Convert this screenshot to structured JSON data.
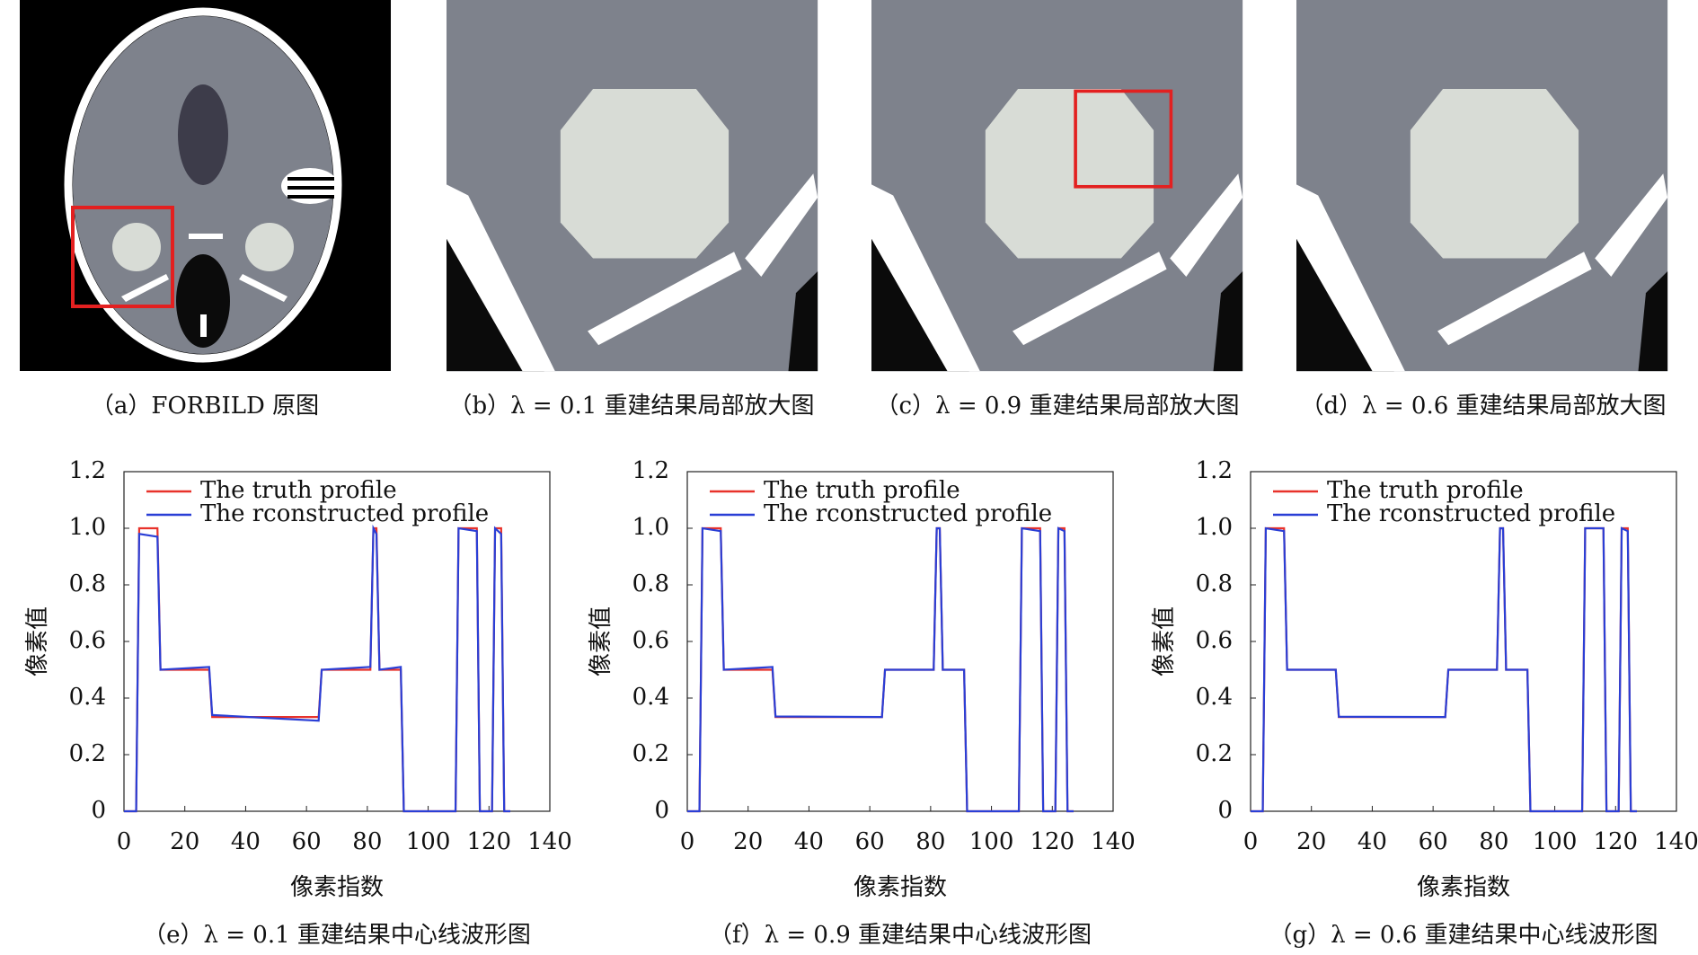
{
  "images": [
    {
      "caption": "（a）FORBILD 原图"
    },
    {
      "caption": "（b）λ = 0.1 重建结果局部放大图"
    },
    {
      "caption": "（c）λ = 0.9 重建结果局部放大图"
    },
    {
      "caption": "（d）λ = 0.6 重建结果局部放大图"
    }
  ],
  "chart_data": [
    {
      "type": "line",
      "caption": "（e）λ = 0.1 重建结果中心线波形图",
      "x_label": "像素指数",
      "y_label": "像素值",
      "x": [
        0,
        4,
        5,
        11,
        12,
        28,
        29,
        64,
        65,
        81,
        82,
        83,
        84,
        91,
        92,
        109,
        110,
        116,
        117,
        121,
        122,
        124,
        125,
        127
      ],
      "series": [
        {
          "name": "The truth profile",
          "color": "#e8322b",
          "values": [
            0,
            0,
            1,
            1,
            0.5,
            0.5,
            0.333,
            0.333,
            0.5,
            0.5,
            1,
            1,
            0.5,
            0.5,
            0,
            0,
            1,
            1,
            0,
            0,
            1,
            1,
            0,
            0
          ]
        },
        {
          "name": "The rconstructed profile",
          "color": "#2a3fd6",
          "values": [
            0,
            0,
            0.98,
            0.97,
            0.5,
            0.51,
            0.34,
            0.32,
            0.5,
            0.51,
            1,
            0.98,
            0.5,
            0.51,
            0,
            0,
            1,
            0.99,
            0,
            0,
            1,
            0.98,
            0,
            0
          ]
        }
      ],
      "xlim": [
        0,
        140
      ],
      "xticks": [
        0,
        20,
        40,
        60,
        80,
        100,
        120,
        140
      ],
      "ylim": [
        0,
        1.2
      ],
      "yticks": [
        0,
        0.2,
        0.4,
        0.6,
        0.8,
        {
          "value": 1,
          "label": "1.0"
        },
        1.2
      ],
      "legend": "upper-left"
    },
    {
      "type": "line",
      "caption": "（f）λ = 0.9 重建结果中心线波形图",
      "x_label": "像素指数",
      "y_label": "像素值",
      "x": [
        0,
        4,
        5,
        11,
        12,
        28,
        29,
        64,
        65,
        81,
        82,
        83,
        84,
        91,
        92,
        109,
        110,
        116,
        117,
        121,
        122,
        124,
        125,
        127
      ],
      "series": [
        {
          "name": "The truth profile",
          "color": "#e8322b",
          "values": [
            0,
            0,
            1,
            1,
            0.5,
            0.5,
            0.333,
            0.333,
            0.5,
            0.5,
            1,
            1,
            0.5,
            0.5,
            0,
            0,
            1,
            1,
            0,
            0,
            1,
            1,
            0,
            0
          ]
        },
        {
          "name": "The rconstructed profile",
          "color": "#2a3fd6",
          "values": [
            0,
            0,
            1,
            0.99,
            0.5,
            0.51,
            0.335,
            0.333,
            0.5,
            0.5,
            1,
            1,
            0.5,
            0.5,
            0,
            0,
            1,
            0.99,
            0,
            0,
            1,
            0.99,
            0,
            0
          ]
        }
      ],
      "xlim": [
        0,
        140
      ],
      "xticks": [
        0,
        20,
        40,
        60,
        80,
        100,
        120,
        140
      ],
      "ylim": [
        0,
        1.2
      ],
      "yticks": [
        0,
        0.2,
        0.4,
        0.6,
        0.8,
        {
          "value": 1,
          "label": "1.0"
        },
        1.2
      ],
      "legend": "upper-left"
    },
    {
      "type": "line",
      "caption": "（g）λ = 0.6 重建结果中心线波形图",
      "x_label": "像素指数",
      "y_label": "像素值",
      "x": [
        0,
        4,
        5,
        11,
        12,
        28,
        29,
        64,
        65,
        81,
        82,
        83,
        84,
        91,
        92,
        109,
        110,
        116,
        117,
        121,
        122,
        124,
        125,
        127
      ],
      "series": [
        {
          "name": "The truth profile",
          "color": "#e8322b",
          "values": [
            0,
            0,
            1,
            1,
            0.5,
            0.5,
            0.333,
            0.333,
            0.5,
            0.5,
            1,
            1,
            0.5,
            0.5,
            0,
            0,
            1,
            1,
            0,
            0,
            1,
            1,
            0,
            0
          ]
        },
        {
          "name": "The rconstructed profile",
          "color": "#2a3fd6",
          "values": [
            0,
            0,
            1,
            0.99,
            0.5,
            0.5,
            0.334,
            0.333,
            0.5,
            0.5,
            1,
            1,
            0.5,
            0.5,
            0,
            0,
            1,
            1,
            0,
            0,
            1,
            0.99,
            0,
            0
          ]
        }
      ],
      "xlim": [
        0,
        140
      ],
      "xticks": [
        0,
        20,
        40,
        60,
        80,
        100,
        120,
        140
      ],
      "ylim": [
        0,
        1.2
      ],
      "yticks": [
        0,
        0.2,
        0.4,
        0.6,
        0.8,
        {
          "value": 1,
          "label": "1.0"
        },
        1.2
      ],
      "legend": "upper-left"
    }
  ]
}
